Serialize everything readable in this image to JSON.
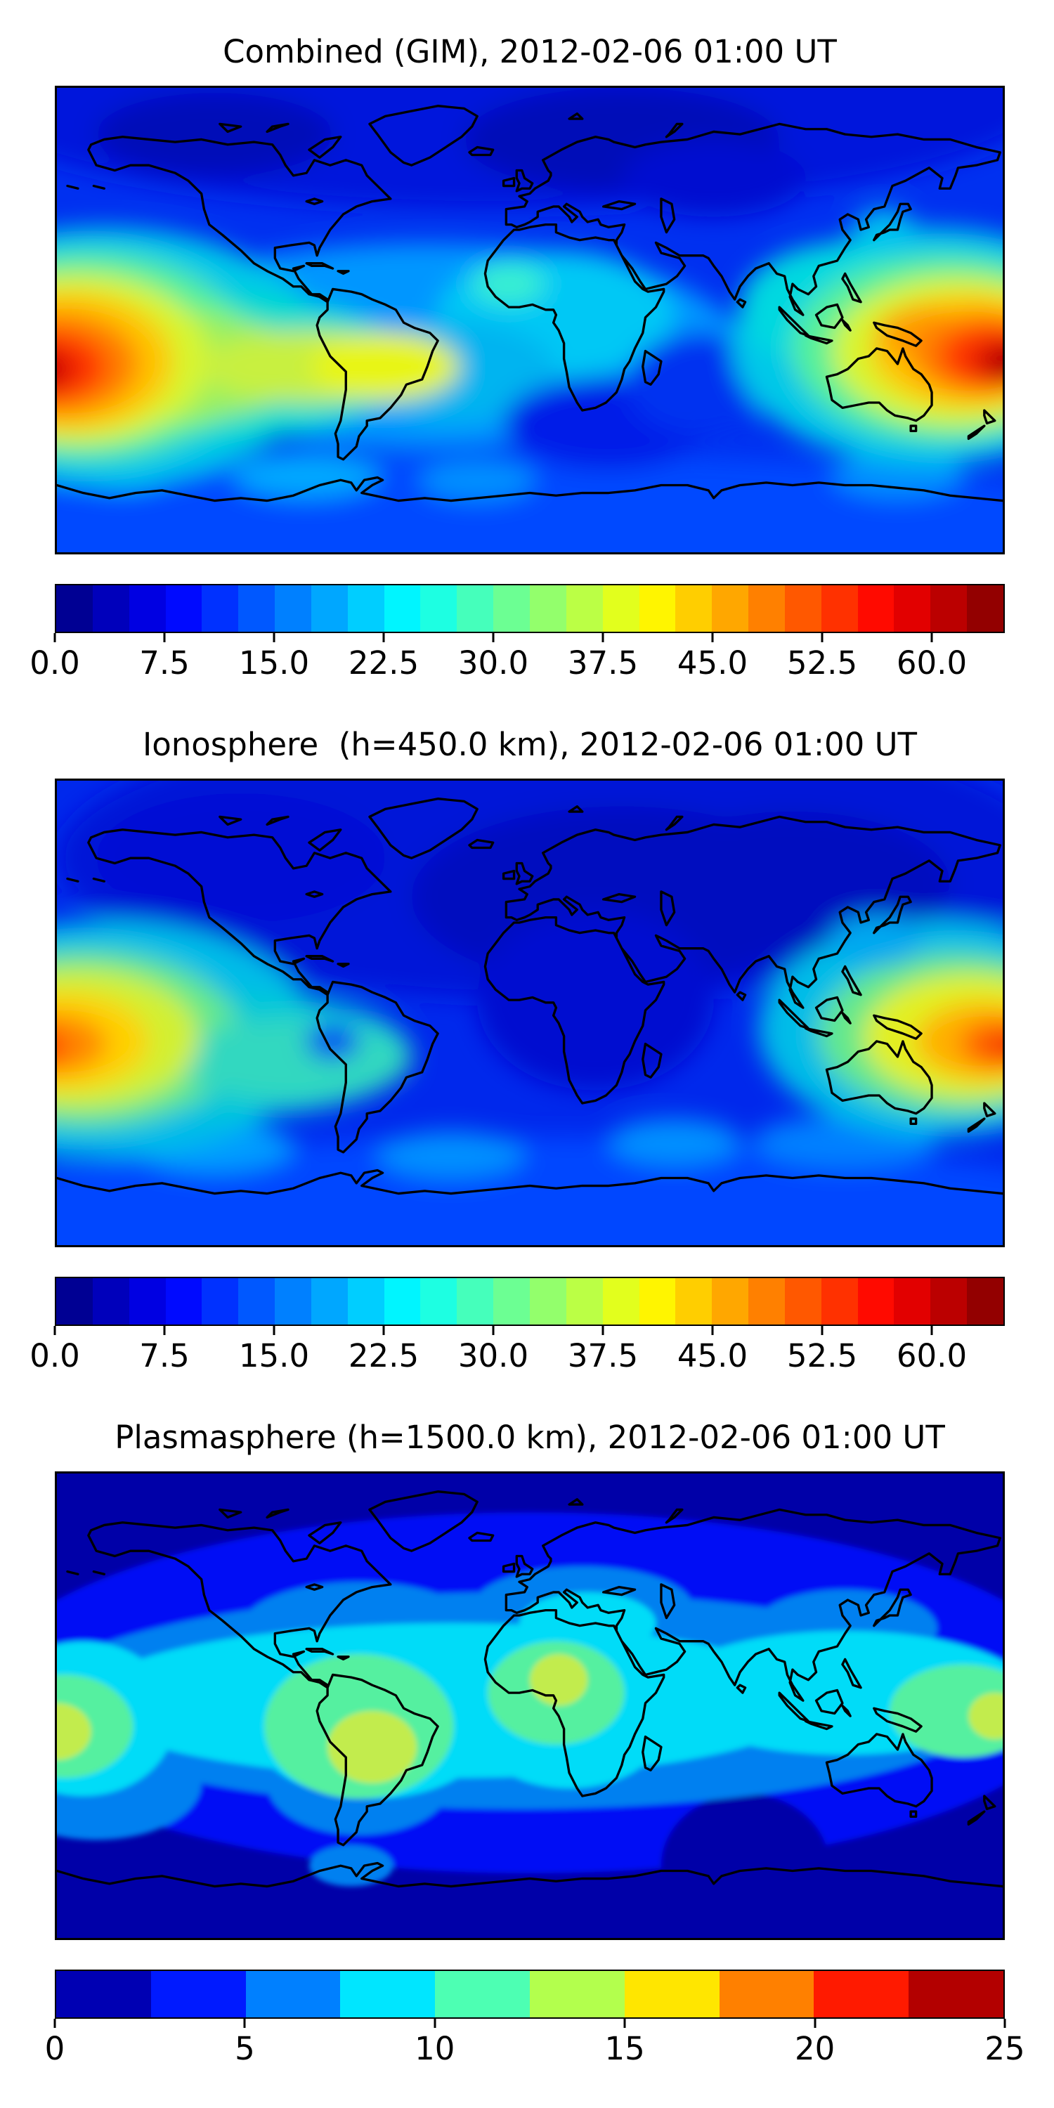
{
  "figure": {
    "background": "#FFFFFF",
    "text_color": "#000000",
    "panel_count": 3
  },
  "chart_data": [
    {
      "type": "heatmap",
      "title": "Combined (GIM), 2012-02-06 01:00 UT",
      "projection": {
        "kind": "equirectangular",
        "lon_range": [
          -180,
          180
        ],
        "lat_range": [
          -90,
          90
        ],
        "coastlines": true,
        "grid": false
      },
      "colormap": "jet",
      "colorbar": {
        "orientation": "horizontal",
        "vmin": 0,
        "vmax": 65,
        "n_segments": 26,
        "ticks": [
          {
            "value": 0,
            "label": "0.0"
          },
          {
            "value": 7.5,
            "label": "7.5"
          },
          {
            "value": 15,
            "label": "15.0"
          },
          {
            "value": 22.5,
            "label": "22.5"
          },
          {
            "value": 30,
            "label": "30.0"
          },
          {
            "value": 37.5,
            "label": "37.5"
          },
          {
            "value": 45,
            "label": "45.0"
          },
          {
            "value": 52.5,
            "label": "52.5"
          },
          {
            "value": 60,
            "label": "60.0"
          }
        ],
        "segment_colors": [
          "#000093",
          "#0000BB",
          "#0000E2",
          "#000AFF",
          "#0031FF",
          "#0058FF",
          "#0080FF",
          "#00A7FF",
          "#00CEFF",
          "#00F5FF",
          "#1DFFE2",
          "#45FFBB",
          "#6CFF93",
          "#93FF6C",
          "#BBFF45",
          "#E2FF1D",
          "#FFF500",
          "#FFCE00",
          "#FFA700",
          "#FF8000",
          "#FF5800",
          "#FF3100",
          "#FF0A00",
          "#E20000",
          "#BB0000",
          "#930000"
        ]
      },
      "features": [
        "Maximum ~60-65 in equatorial anomaly crests near 180W, 15S and 165E, 15S",
        "Yellow tongue ~35-45 extending over central South America",
        "Local light-cyan maximum ~25 over West Africa",
        "Minimum <7.5 over high northern latitudes (N Canada, N Europe, Siberia)"
      ],
      "map": {
        "base_color": "#0030F0",
        "smooth": true,
        "blobs": [
          {
            "lon": -10,
            "lat": 85,
            "rlon": 205,
            "rlat": 42,
            "color": "#0013DC"
          },
          {
            "lon": -120,
            "lat": 72,
            "rlon": 45,
            "rlat": 16,
            "color": "#0009B8"
          },
          {
            "lon": 35,
            "lat": 70,
            "rlon": 60,
            "rlat": 20,
            "color": "#0009B8"
          },
          {
            "lon": 70,
            "lat": 55,
            "rlon": 35,
            "rlat": 15,
            "color": "#000FD0"
          },
          {
            "lon": 0,
            "lat": -82,
            "rlon": 230,
            "rlat": 30,
            "color": "#0048FF"
          },
          {
            "lon": -85,
            "lat": -60,
            "rlon": 28,
            "rlat": 9,
            "color": "#00A8FF"
          },
          {
            "lon": -155,
            "lat": -58,
            "rlon": 20,
            "rlat": 8,
            "color": "#00A8FF"
          },
          {
            "lon": -20,
            "lat": -62,
            "rlon": 22,
            "rlat": 8,
            "color": "#0090FF"
          },
          {
            "lon": 140,
            "lat": -60,
            "rlon": 25,
            "rlat": 9,
            "color": "#0090FF"
          },
          {
            "lon": -40,
            "lat": -10,
            "rlon": 120,
            "rlat": 40,
            "color": "#0096FF"
          },
          {
            "lon": 10,
            "lat": 2,
            "rlon": 45,
            "rlat": 25,
            "color": "#00C8F5"
          },
          {
            "lon": -8,
            "lat": 14,
            "rlon": 14,
            "rlat": 8,
            "color": "#38EFD2"
          },
          {
            "lon": -30,
            "lat": -20,
            "rlon": 40,
            "rlat": 20,
            "color": "#00B4F0"
          },
          {
            "lon": 30,
            "lat": -40,
            "rlon": 40,
            "rlat": 18,
            "color": "#001AE8"
          },
          {
            "lon": 65,
            "lat": -25,
            "rlon": 28,
            "rlat": 20,
            "color": "#0030F0"
          },
          {
            "lon": -162,
            "lat": -14,
            "rlon": 85,
            "rlat": 50,
            "color": "#00C8E8"
          },
          {
            "lon": -120,
            "lat": -18,
            "rlon": 75,
            "rlat": 28,
            "color": "#00DCCC"
          },
          {
            "lon": -168,
            "lat": -14,
            "rlon": 62,
            "rlat": 40,
            "color": "#55F09A"
          },
          {
            "lon": -140,
            "lat": -18,
            "rlon": 55,
            "rlat": 22,
            "color": "#9AF060"
          },
          {
            "lon": -172,
            "lat": -15,
            "rlon": 50,
            "rlat": 33,
            "color": "#D8F52E"
          },
          {
            "lon": -85,
            "lat": -18,
            "rlon": 40,
            "rlat": 14,
            "color": "#C8F040"
          },
          {
            "lon": -55,
            "lat": -18,
            "rlon": 28,
            "rlat": 13,
            "color": "#E8F518"
          },
          {
            "lon": -176,
            "lat": -16,
            "rlon": 40,
            "rlat": 27,
            "color": "#FFC400"
          },
          {
            "lon": -180,
            "lat": -17,
            "rlon": 31,
            "rlat": 20,
            "color": "#FF7E00"
          },
          {
            "lon": -184,
            "lat": -18,
            "rlon": 23,
            "rlat": 14,
            "color": "#FF3400"
          },
          {
            "lon": -188,
            "lat": -19,
            "rlon": 15,
            "rlat": 9,
            "color": "#D40000"
          },
          {
            "lon": -192,
            "lat": -20,
            "rlon": 9,
            "rlat": 6,
            "color": "#8F0000"
          },
          {
            "lon": 152,
            "lat": -10,
            "rlon": 75,
            "rlat": 46,
            "color": "#00C8E8"
          },
          {
            "lon": 120,
            "lat": 5,
            "rlon": 40,
            "rlat": 25,
            "color": "#00D8E0"
          },
          {
            "lon": 158,
            "lat": -11,
            "rlon": 58,
            "rlat": 36,
            "color": "#55F09A"
          },
          {
            "lon": 162,
            "lat": -12,
            "rlon": 47,
            "rlat": 29,
            "color": "#D8F52E"
          },
          {
            "lon": 167,
            "lat": -12,
            "rlon": 37,
            "rlat": 22,
            "color": "#FFC400"
          },
          {
            "lon": 148,
            "lat": -5,
            "rlon": 16,
            "rlat": 10,
            "color": "#FF9E00"
          },
          {
            "lon": 172,
            "lat": -13,
            "rlon": 27,
            "rlat": 16,
            "color": "#FF7E00"
          },
          {
            "lon": 176,
            "lat": -14,
            "rlon": 20,
            "rlat": 12,
            "color": "#FF3400"
          },
          {
            "lon": 182,
            "lat": -16,
            "rlon": 13,
            "rlat": 8,
            "color": "#C80000"
          },
          {
            "lon": 187,
            "lat": -17,
            "rlon": 8,
            "rlat": 5,
            "color": "#8F0000"
          },
          {
            "lon": 135,
            "lat": 35,
            "rlon": 12,
            "rlat": 8,
            "color": "#00C0F0"
          }
        ]
      }
    },
    {
      "type": "heatmap",
      "title": "Ionosphere  (h=450.0 km), 2012-02-06 01:00 UT",
      "projection": {
        "kind": "equirectangular",
        "lon_range": [
          -180,
          180
        ],
        "lat_range": [
          -90,
          90
        ],
        "coastlines": true,
        "grid": false
      },
      "colormap": "jet",
      "colorbar": {
        "orientation": "horizontal",
        "vmin": 0,
        "vmax": 65,
        "n_segments": 26,
        "ticks": [
          {
            "value": 0,
            "label": "0.0"
          },
          {
            "value": 7.5,
            "label": "7.5"
          },
          {
            "value": 15,
            "label": "15.0"
          },
          {
            "value": 22.5,
            "label": "22.5"
          },
          {
            "value": 30,
            "label": "30.0"
          },
          {
            "value": 37.5,
            "label": "37.5"
          },
          {
            "value": 45,
            "label": "45.0"
          },
          {
            "value": 52.5,
            "label": "52.5"
          },
          {
            "value": 60,
            "label": "60.0"
          }
        ],
        "segment_colors": [
          "#000093",
          "#0000BB",
          "#0000E2",
          "#000AFF",
          "#0031FF",
          "#0058FF",
          "#0080FF",
          "#00A7FF",
          "#00CEFF",
          "#00F5FF",
          "#1DFFE2",
          "#45FFBB",
          "#6CFF93",
          "#93FF6C",
          "#BBFF45",
          "#E2FF1D",
          "#FFF500",
          "#FFCE00",
          "#FFA700",
          "#FF8000",
          "#FF5800",
          "#FF3100",
          "#FF0A00",
          "#E20000",
          "#BB0000",
          "#930000"
        ]
      },
      "features": [
        "Weaker version of combined map: maxima ~45-50 (orange) near 180W, 10S and 175E, 10S",
        "Teal tongue over South America with small blue dip near Peru",
        "Broad minimum <7.5 over Europe, Africa and central Asia"
      ],
      "map": {
        "base_color": "#0028EC",
        "smooth": true,
        "blobs": [
          {
            "lon": 10,
            "lat": 60,
            "rlon": 190,
            "rlat": 55,
            "color": "#0012D8"
          },
          {
            "lon": 35,
            "lat": 45,
            "rlon": 80,
            "rlat": 35,
            "color": "#000BBF"
          },
          {
            "lon": 100,
            "lat": 50,
            "rlon": 60,
            "rlat": 28,
            "color": "#000BBF"
          },
          {
            "lon": 25,
            "lat": 5,
            "rlon": 45,
            "rlat": 35,
            "color": "#000FD0"
          },
          {
            "lon": -110,
            "lat": 60,
            "rlon": 55,
            "rlat": 25,
            "color": "#0011D4"
          },
          {
            "lon": 0,
            "lat": -80,
            "rlon": 230,
            "rlat": 32,
            "color": "#0047FF"
          },
          {
            "lon": -120,
            "lat": -52,
            "rlon": 30,
            "rlat": 10,
            "color": "#009CFF"
          },
          {
            "lon": -30,
            "lat": -55,
            "rlon": 28,
            "rlat": 9,
            "color": "#0090FF"
          },
          {
            "lon": -175,
            "lat": -48,
            "rlon": 18,
            "rlat": 8,
            "color": "#00AEFF"
          },
          {
            "lon": 120,
            "lat": -50,
            "rlon": 35,
            "rlat": 10,
            "color": "#0080FF"
          },
          {
            "lon": 55,
            "lat": -50,
            "rlon": 25,
            "rlat": 9,
            "color": "#0090FF"
          },
          {
            "lon": -160,
            "lat": -10,
            "rlon": 80,
            "rlat": 46,
            "color": "#00BCE8"
          },
          {
            "lon": -110,
            "lat": -16,
            "rlon": 65,
            "rlat": 24,
            "color": "#00C8D8"
          },
          {
            "lon": -168,
            "lat": -10,
            "rlon": 58,
            "rlat": 34,
            "color": "#64E88C"
          },
          {
            "lon": -90,
            "lat": -18,
            "rlon": 45,
            "rlat": 16,
            "color": "#30D8C0"
          },
          {
            "lon": -172,
            "lat": -10,
            "rlon": 46,
            "rlat": 27,
            "color": "#D2F032"
          },
          {
            "lon": -178,
            "lat": -11,
            "rlon": 33,
            "rlat": 19,
            "color": "#FFD000"
          },
          {
            "lon": -183,
            "lat": -12,
            "rlon": 22,
            "rlat": 12,
            "color": "#FF8800"
          },
          {
            "lon": -188,
            "lat": -13,
            "rlon": 12,
            "rlat": 7,
            "color": "#FF4400"
          },
          {
            "lon": -75,
            "lat": -11,
            "rlon": 10,
            "rlat": 7,
            "color": "#0048F0"
          },
          {
            "lon": 155,
            "lat": -6,
            "rlon": 68,
            "rlat": 42,
            "color": "#00BCE8"
          },
          {
            "lon": 162,
            "lat": -8,
            "rlon": 52,
            "rlat": 31,
            "color": "#64E88C"
          },
          {
            "lon": 167,
            "lat": -9,
            "rlon": 40,
            "rlat": 24,
            "color": "#E2F024"
          },
          {
            "lon": 173,
            "lat": -11,
            "rlon": 26,
            "rlat": 15,
            "color": "#FFB000"
          },
          {
            "lon": 179,
            "lat": -12,
            "rlon": 15,
            "rlat": 9,
            "color": "#FF5E00"
          },
          {
            "lon": 184,
            "lat": -13,
            "rlon": 8,
            "rlat": 5,
            "color": "#F03000"
          },
          {
            "lon": 132,
            "lat": 28,
            "rlon": 18,
            "rlat": 10,
            "color": "#00A8F0"
          }
        ]
      }
    },
    {
      "type": "heatmap",
      "title": "Plasmasphere (h=1500.0 km), 2012-02-06 01:00 UT",
      "projection": {
        "kind": "equirectangular",
        "lon_range": [
          -180,
          180
        ],
        "lat_range": [
          -90,
          90
        ],
        "coastlines": true,
        "grid": false
      },
      "colormap": "jet",
      "colorbar": {
        "orientation": "horizontal",
        "vmin": 0,
        "vmax": 25,
        "n_segments": 10,
        "ticks": [
          {
            "value": 0,
            "label": "0"
          },
          {
            "value": 5,
            "label": "5"
          },
          {
            "value": 10,
            "label": "10"
          },
          {
            "value": 15,
            "label": "15"
          },
          {
            "value": 20,
            "label": "20"
          },
          {
            "value": 25,
            "label": "25"
          }
        ],
        "segment_colors": [
          "#0000B3",
          "#001AFF",
          "#0080FF",
          "#00E6FF",
          "#4DFFB3",
          "#B3FF4D",
          "#FFE600",
          "#FF8000",
          "#FF1A00",
          "#B30000"
        ]
      },
      "features": [
        "Discrete banded field, values ~2.5-15",
        "Cyan/green equatorial belt with yellow-green cores ~12-15 near 180W 10S, over Brazil, over West Africa, and near 175E 5S",
        "Dark navy <2.5 at high latitudes; blue band 2.5-5 in between"
      ],
      "map": {
        "base_color": "#0000A8",
        "smooth": false,
        "blobs": [
          {
            "lon": 0,
            "lat": 5,
            "rlon": 210,
            "rlat": 70,
            "color": "#0008F5"
          },
          {
            "lon": 82,
            "lat": -62,
            "rlon": 32,
            "rlat": 28,
            "color": "#0000A8"
          },
          {
            "lon": -5,
            "lat": 2,
            "rlon": 185,
            "rlat": 42,
            "color": "#0080F0"
          },
          {
            "lon": 20,
            "lat": 38,
            "rlon": 42,
            "rlat": 16,
            "color": "#0080F0"
          },
          {
            "lon": -65,
            "lat": 30,
            "rlon": 45,
            "rlat": 18,
            "color": "#0080F0"
          },
          {
            "lon": 120,
            "lat": 30,
            "rlon": 35,
            "rlat": 15,
            "color": "#0080F0"
          },
          {
            "lon": -165,
            "lat": -30,
            "rlon": 40,
            "rlat": 22,
            "color": "#0080F0"
          },
          {
            "lon": -65,
            "lat": -30,
            "rlon": 35,
            "rlat": 20,
            "color": "#0080F0"
          },
          {
            "lon": -68,
            "lat": -62,
            "rlon": 16,
            "rlat": 8,
            "color": "#0080F0"
          },
          {
            "lon": -30,
            "lat": 2,
            "rlon": 140,
            "rlat": 30,
            "color": "#00DCF8"
          },
          {
            "lon": 120,
            "lat": 5,
            "rlon": 70,
            "rlat": 24,
            "color": "#00DCF8"
          },
          {
            "lon": -170,
            "lat": -5,
            "rlon": 35,
            "rlat": 30,
            "color": "#00DCF8"
          },
          {
            "lon": 22,
            "lat": 32,
            "rlon": 26,
            "rlat": 12,
            "color": "#00DCF8"
          },
          {
            "lon": -60,
            "lat": -10,
            "rlon": 45,
            "rlat": 26,
            "color": "#00DCF8"
          },
          {
            "lon": 15,
            "lat": -10,
            "rlon": 35,
            "rlat": 22,
            "color": "#00DCF8"
          },
          {
            "lon": -177,
            "lat": -8,
            "rlon": 26,
            "rlat": 20,
            "color": "#55F0A0"
          },
          {
            "lon": -65,
            "lat": -8,
            "rlon": 36,
            "rlat": 28,
            "color": "#55F0A0"
          },
          {
            "lon": 10,
            "lat": 5,
            "rlon": 26,
            "rlat": 20,
            "color": "#55F0A0"
          },
          {
            "lon": 165,
            "lat": -2,
            "rlon": 28,
            "rlat": 18,
            "color": "#55F0A0"
          },
          {
            "lon": -180,
            "lat": -10,
            "rlon": 13,
            "rlat": 11,
            "color": "#C2EC4E"
          },
          {
            "lon": -60,
            "lat": -16,
            "rlon": 17,
            "rlat": 14,
            "color": "#C2EC4E"
          },
          {
            "lon": 11,
            "lat": 10,
            "rlon": 11,
            "rlat": 10,
            "color": "#C2EC4E"
          },
          {
            "lon": 177,
            "lat": -4,
            "rlon": 10,
            "rlat": 9,
            "color": "#C2EC4E"
          }
        ]
      }
    }
  ]
}
